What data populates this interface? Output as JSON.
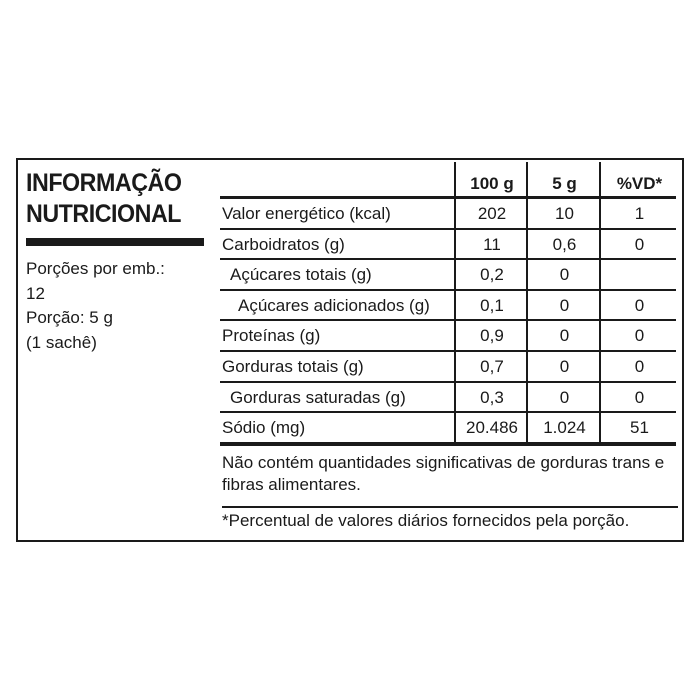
{
  "title": {
    "line1": "INFORMAÇÃO",
    "line2": "NUTRICIONAL"
  },
  "servings": {
    "per_package_label": "Porções por emb.:",
    "per_package_value": "12",
    "portion": "Porção: 5 g",
    "portion_unit": "(1 sachê)"
  },
  "table": {
    "headers": [
      "",
      "100 g",
      "5 g",
      "%VD*"
    ],
    "rows": [
      {
        "label": "Valor energético (kcal)",
        "per100": "202",
        "perPortion": "10",
        "vd": "1"
      },
      {
        "label": "Carboidratos (g)",
        "per100": "11",
        "perPortion": "0,6",
        "vd": "0"
      },
      {
        "label": "Açúcares totais (g)",
        "per100": "0,2",
        "perPortion": "0",
        "vd": ""
      },
      {
        "label": "Açúcares adicionados (g)",
        "per100": "0,1",
        "perPortion": "0",
        "vd": "0"
      },
      {
        "label": "Proteínas (g)",
        "per100": "0,9",
        "perPortion": "0",
        "vd": "0"
      },
      {
        "label": "Gorduras totais (g)",
        "per100": "0,7",
        "perPortion": "0",
        "vd": "0"
      },
      {
        "label": "Gorduras saturadas (g)",
        "per100": "0,3",
        "perPortion": "0",
        "vd": "0"
      },
      {
        "label": "Sódio (mg)",
        "per100": "20.486",
        "perPortion": "1.024",
        "vd": "51"
      }
    ]
  },
  "note": "Não contém quantidades significativas de gorduras trans e fibras alimentares.",
  "footnote": "*Percentual de valores diários fornecidos pela porção."
}
